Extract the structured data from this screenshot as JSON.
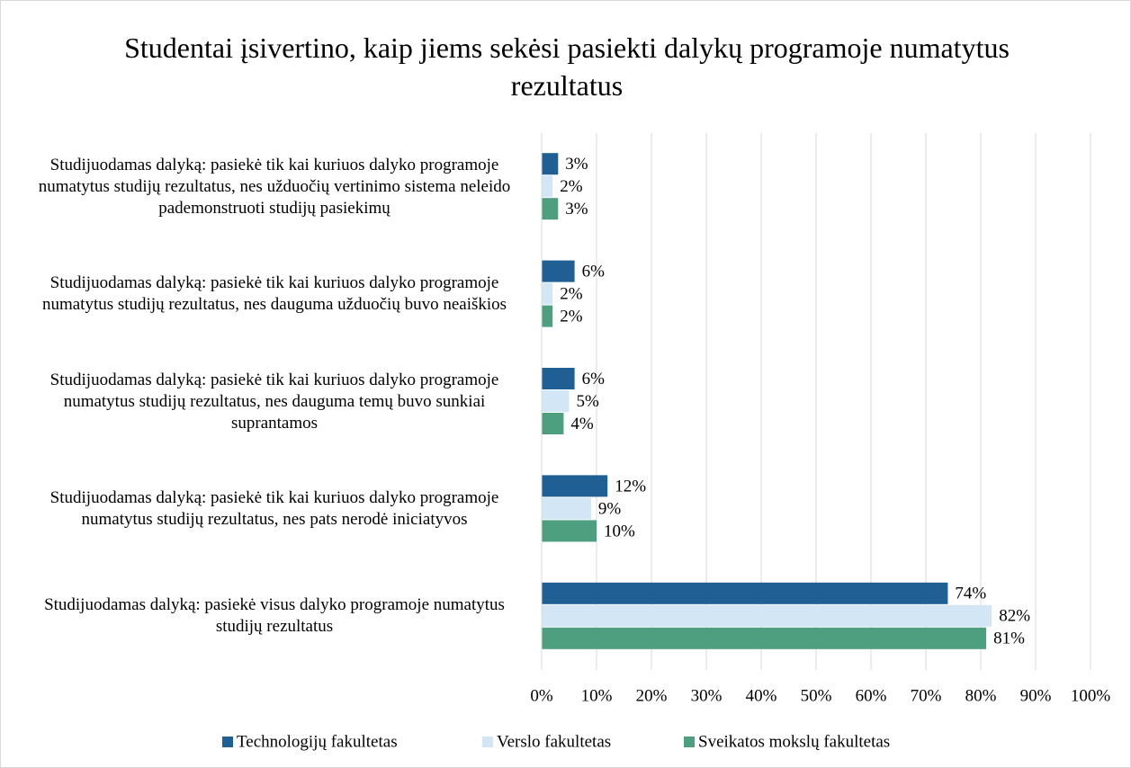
{
  "chart_data": {
    "type": "bar",
    "orientation": "horizontal",
    "title": "Studentai įsivertino, kaip jiems sekėsi pasiekti dalykų programoje numatytus rezultatus",
    "categories": [
      "Studijuodamas dalyką: pasiekė tik kai kuriuos dalyko programoje numatytus studijų rezultatus, nes užduočių vertinimo sistema neleido pademonstruoti studijų pasiekimų",
      "Studijuodamas dalyką: pasiekė tik kai kuriuos dalyko programoje numatytus studijų rezultatus, nes dauguma užduočių buvo neaiškios",
      "Studijuodamas dalyką: pasiekė tik kai kuriuos dalyko programoje  numatytus studijų rezultatus, nes dauguma temų buvo sunkiai suprantamos",
      "Studijuodamas dalyką: pasiekė tik kai kuriuos dalyko programoje numatytus studijų rezultatus, nes pats nerodė iniciatyvos",
      "Studijuodamas dalyką:  pasiekė visus dalyko programoje numatytus studijų rezultatus"
    ],
    "series": [
      {
        "name": "Technologijų fakultetas",
        "color": "#1f5f94",
        "values": [
          3,
          6,
          6,
          12,
          74
        ],
        "value_labels": [
          "3%",
          "6%",
          "6%",
          "12%",
          "74%"
        ]
      },
      {
        "name": "Verslo fakultetas",
        "color": "#d2e6f5",
        "values": [
          2,
          2,
          5,
          9,
          82
        ],
        "value_labels": [
          "2%",
          "2%",
          "5%",
          "9%",
          "82%"
        ]
      },
      {
        "name": "Sveikatos mokslų fakultetas",
        "color": "#4e9e80",
        "values": [
          3,
          2,
          4,
          10,
          81
        ],
        "value_labels": [
          "3%",
          "2%",
          "4%",
          "10%",
          "81%"
        ]
      }
    ],
    "xlim": [
      0,
      100
    ],
    "xticks": [
      {
        "value": 0,
        "label": "0%"
      },
      {
        "value": 10,
        "label": "10%"
      },
      {
        "value": 20,
        "label": "20%"
      },
      {
        "value": 30,
        "label": "30%"
      },
      {
        "value": 40,
        "label": "40%"
      },
      {
        "value": 50,
        "label": "50%"
      },
      {
        "value": 60,
        "label": "60%"
      },
      {
        "value": 70,
        "label": "70%"
      },
      {
        "value": 80,
        "label": "80%"
      },
      {
        "value": 90,
        "label": "90%"
      },
      {
        "value": 100,
        "label": "100%"
      }
    ],
    "grid": true,
    "legend": "bottom"
  }
}
